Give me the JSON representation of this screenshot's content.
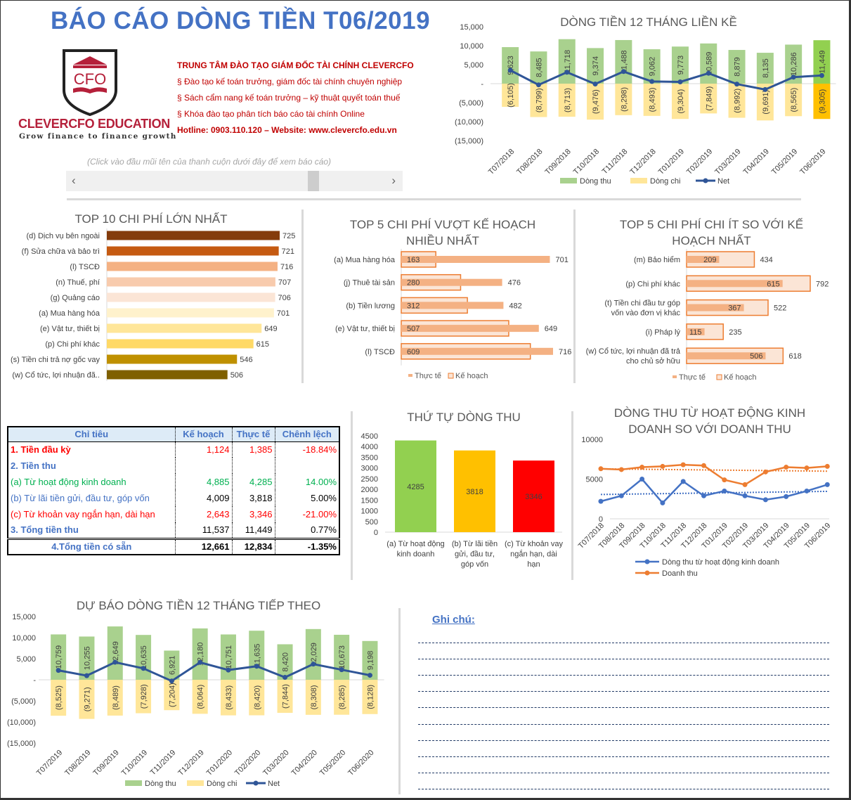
{
  "header": {
    "title": "BÁO CÁO DÒNG TIỀN T06/2019",
    "logo_text": "CFO",
    "brand": "CLEVERCFO EDUCATION",
    "tagline": "Grow finance to finance growth",
    "info_lines": [
      "TRUNG TÂM ĐÀO TẠO GIÁM ĐỐC TÀI CHÍNH CLEVERCFO",
      "§ Đào tạo kế toán trưởng, giám đốc tài chính chuyên nghiệp",
      "§ Sách cẩm nang kế toán trưởng – kỹ thuật quyết toán thuế",
      "§ Khóa đào tạo phân tích báo cáo tài chính Online",
      "Hotline: 0903.110.120 – Website: www.clevercfo.edu.vn"
    ],
    "hint": "(Click vào đầu mũi tên của thanh cuộn dưới đây để xem báo cáo)",
    "scroll_left": "‹",
    "scroll_right": "›",
    "brand_color": "#c00000",
    "title_color": "#4472c4"
  },
  "table": {
    "headers": [
      "Chỉ tiêu",
      "Kế hoạch",
      "Thực tế",
      "Chênh lệch"
    ],
    "rows": [
      {
        "label": "1. Tiền đầu kỳ",
        "plan": "1,124",
        "actual": "1,385",
        "diff": "-18.84%",
        "color": "#ff0000",
        "bold": true
      },
      {
        "label": "2. Tiền thu",
        "plan": "",
        "actual": "",
        "diff": "",
        "color": "#4472c4",
        "bold": true
      },
      {
        "label": "(a) Từ hoạt động kinh doanh",
        "plan": "4,885",
        "actual": "4,285",
        "diff": "14.00%",
        "color": "#00b050",
        "bold": false
      },
      {
        "label": "(b) Từ lãi tiền gửi, đầu tư, góp vốn",
        "plan": "4,009",
        "actual": "3,818",
        "diff": "5.00%",
        "color": "#4472c4",
        "num_color": "#000000",
        "bold": false
      },
      {
        "label": "(c) Từ khoản vay ngắn hạn, dài hạn",
        "plan": "2,643",
        "actual": "3,346",
        "diff": "-21.00%",
        "color": "#ff0000",
        "bold": false
      },
      {
        "label": "3. Tổng tiền thu",
        "plan": "11,537",
        "actual": "11,449",
        "diff": "0.77%",
        "color": "#4472c4",
        "num_color": "#000000",
        "bold": true
      }
    ],
    "total": {
      "label": "4.Tổng tiền có sẵn",
      "plan": "12,661",
      "actual": "12,834",
      "diff": "-1.35%"
    }
  },
  "notes": {
    "title": "Ghi chú:"
  },
  "chart_data": [
    {
      "id": "cashflow_12m",
      "type": "bar",
      "title": "DÒNG TIỀN 12 THÁNG LIỀN KỀ",
      "categories": [
        "T07/2018",
        "T08/2018",
        "T09/2018",
        "T10/2018",
        "T11/2018",
        "T12/2018",
        "T01/2019",
        "T02/2019",
        "T03/2019",
        "T04/2019",
        "T05/2019",
        "T06/2019"
      ],
      "series": [
        {
          "name": "Dòng thu",
          "values": [
            9623,
            8485,
            11718,
            9374,
            11488,
            9062,
            9773,
            10589,
            8879,
            8135,
            10286,
            11449
          ],
          "color": "#a9d18e",
          "highlight_color": "#92d050"
        },
        {
          "name": "Dòng chi",
          "values": [
            -6105,
            -8799,
            -8713,
            -9476,
            -8298,
            -8493,
            -9304,
            -7849,
            -8992,
            -9691,
            -8565,
            -9305
          ],
          "color": "#ffe699",
          "highlight_color": "#ffc000"
        },
        {
          "name": "Net",
          "type": "line",
          "color": "#2f5597"
        }
      ],
      "ylim": [
        -15000,
        15000
      ],
      "y_ticks": [
        15000,
        10000,
        5000,
        0,
        -5000,
        -10000,
        -15000
      ],
      "legend": "bottom"
    },
    {
      "id": "top10",
      "type": "bar",
      "orientation": "horizontal",
      "title": "TOP 10 CHI PHÍ LỚN NHẤT",
      "categories": [
        "(d) Dịch vụ bên ngoài",
        "(f) Sửa chữa và bảo trì",
        "(l) TSCĐ",
        "(n) Thuế, phí",
        "(g) Quảng cáo",
        "(a) Mua hàng hóa",
        "(e) Vật tư, thiết bị",
        "(p) Chi phí khác",
        "(s) Tiền chi trả nợ gốc vay",
        "(w) Cổ tức, lợi nhuận đã.."
      ],
      "values": [
        725,
        721,
        716,
        707,
        706,
        701,
        649,
        615,
        546,
        506
      ],
      "colors": [
        "#843c0c",
        "#c55a11",
        "#f4b183",
        "#f8cbad",
        "#fbe5d6",
        "#fff2cc",
        "#ffe699",
        "#ffd966",
        "#bf9000",
        "#7f6000"
      ]
    },
    {
      "id": "top5_over",
      "type": "bar",
      "orientation": "horizontal",
      "title": "TOP 5 CHI PHÍ VƯỢT KẾ HOẠCH NHIỀU NHẤT",
      "categories": [
        "(a) Mua hàng hóa",
        "(j) Thuê tài sản",
        "(b)  Tiền lương",
        "(e) Vật tư, thiết bị",
        "(l) TSCĐ"
      ],
      "series": [
        {
          "name": "Thực tế",
          "values": [
            701,
            476,
            482,
            649,
            716
          ],
          "color": "#f4b183"
        },
        {
          "name": "Kế hoạch",
          "values": [
            163,
            280,
            312,
            507,
            609
          ],
          "color": "#fbe5d6",
          "border": "#ed7d31"
        }
      ],
      "legend": "bottom"
    },
    {
      "id": "top5_under",
      "type": "bar",
      "orientation": "horizontal",
      "title": "TOP 5 CHI PHÍ CHI ÍT SO VỚI KẾ HOẠCH NHẤT",
      "categories": [
        "(m) Bảo hiểm",
        "(p) Chi phí khác",
        "(t) Tiền chi đầu tư góp|vốn vào đơn vị khác",
        "(i) Pháp lý",
        "(w) Cổ tức, lợi nhuận đã trả|cho chủ sở hữu"
      ],
      "series": [
        {
          "name": "Thực tế",
          "values": [
            209,
            615,
            367,
            115,
            506
          ],
          "color": "#f4b183"
        },
        {
          "name": "Kế hoạch",
          "values": [
            434,
            792,
            522,
            235,
            618
          ],
          "color": "#fbe5d6",
          "border": "#ed7d31"
        }
      ],
      "legend": "bottom"
    },
    {
      "id": "income_order",
      "type": "bar",
      "title": "THỨ TỰ DÒNG THU",
      "categories": [
        "(a) Từ hoạt động|kinh doanh",
        "(b) Từ lãi tiền|gửi, đầu tư,|góp vốn",
        "(c) Từ khoản vay|ngắn hạn, dài|hạn"
      ],
      "values": [
        4285,
        3818,
        3346
      ],
      "colors": [
        "#92d050",
        "#ffc000",
        "#ff0000"
      ],
      "ylim": [
        0,
        4500
      ],
      "y_ticks": [
        4500,
        4000,
        3500,
        3000,
        2500,
        2000,
        1500,
        1000,
        500,
        0
      ]
    },
    {
      "id": "ops_vs_revenue",
      "type": "line",
      "title": "DÒNG THU TỪ HOẠT ĐỘNG KINH DOANH SO VỚI DOANH THU",
      "categories": [
        "T07/2018",
        "T08/2018",
        "T09/2018",
        "T10/2018",
        "T11/2018",
        "T12/2018",
        "T01/2019",
        "T02/2019",
        "T03/2019",
        "T04/2019",
        "T05/2019",
        "T06/2019"
      ],
      "series": [
        {
          "name": "Dòng thu từ hoạt động kinh doanh",
          "values": [
            2200,
            2900,
            5000,
            2000,
            4700,
            2900,
            3500,
            2900,
            2400,
            2800,
            3500,
            4300
          ],
          "color": "#4472c4",
          "trendline": true
        },
        {
          "name": "Doanh thu",
          "values": [
            6300,
            6200,
            6500,
            6600,
            6800,
            6700,
            4900,
            4300,
            5900,
            6500,
            6400,
            6600
          ],
          "color": "#ed7d31",
          "trendline": true
        }
      ],
      "ylim": [
        0,
        10000
      ],
      "y_ticks": [
        10000,
        5000,
        0
      ],
      "legend": "bottom"
    },
    {
      "id": "forecast_12m",
      "type": "bar",
      "title": "DỰ BÁO DÒNG TIỀN 12 THÁNG TIẾP THEO",
      "categories": [
        "T07/2019",
        "T08/2019",
        "T09/2019",
        "T10/2019",
        "T11/2019",
        "T12/2019",
        "T01/2020",
        "T02/2020",
        "T03/2020",
        "T04/2020",
        "T05/2020",
        "T06/2020"
      ],
      "series": [
        {
          "name": "Dòng thu",
          "values": [
            10759,
            10255,
            12649,
            10635,
            6921,
            12180,
            10751,
            11635,
            8420,
            12029,
            10673,
            9198
          ],
          "color": "#a9d18e"
        },
        {
          "name": "Dòng chi",
          "values": [
            -8525,
            -9271,
            -8489,
            -7928,
            -7204,
            -8064,
            -8433,
            -8420,
            -7844,
            -8308,
            -8285,
            -8128
          ],
          "color": "#ffe699"
        },
        {
          "name": "Net",
          "type": "line",
          "color": "#2f5597"
        }
      ],
      "ylim": [
        -15000,
        15000
      ],
      "y_ticks": [
        15000,
        10000,
        5000,
        0,
        -5000,
        -10000,
        -15000
      ],
      "legend": "bottom"
    }
  ]
}
